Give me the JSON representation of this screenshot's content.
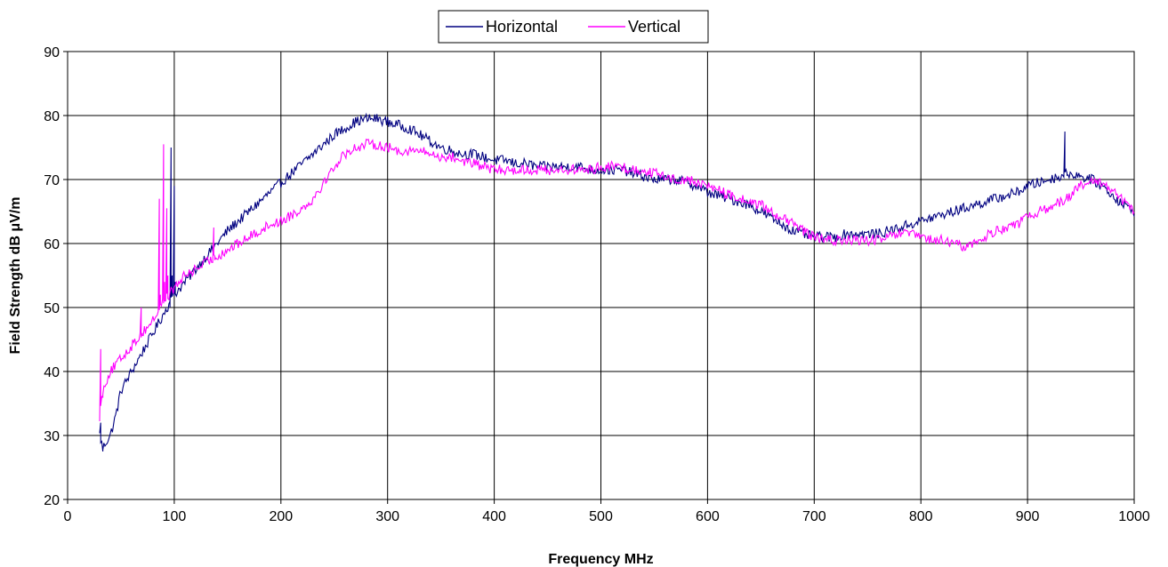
{
  "chart_data": {
    "type": "line",
    "title": "",
    "xlabel": "Frequency MHz",
    "ylabel": "Field Strength dB μV/m",
    "xlim": [
      0,
      1000
    ],
    "ylim": [
      20,
      90
    ],
    "xticks": [
      "0",
      "100",
      "200",
      "300",
      "400",
      "500",
      "600",
      "700",
      "800",
      "900",
      "1000"
    ],
    "yticks": [
      "20",
      "30",
      "40",
      "50",
      "60",
      "70",
      "80",
      "90"
    ],
    "grid": true,
    "legend_position": "top-center",
    "series": [
      {
        "name": "Horizontal",
        "color": "#000080",
        "x": [
          30,
          33,
          36,
          40,
          45,
          50,
          60,
          70,
          80,
          90,
          100,
          110,
          120,
          130,
          140,
          150,
          160,
          170,
          180,
          190,
          200,
          210,
          220,
          230,
          240,
          250,
          260,
          270,
          280,
          290,
          300,
          310,
          320,
          330,
          340,
          350,
          360,
          370,
          380,
          390,
          400,
          410,
          420,
          430,
          440,
          450,
          460,
          470,
          480,
          490,
          500,
          510,
          520,
          530,
          540,
          550,
          560,
          570,
          580,
          590,
          600,
          610,
          620,
          630,
          640,
          650,
          660,
          670,
          680,
          690,
          700,
          710,
          720,
          730,
          740,
          750,
          760,
          770,
          780,
          790,
          800,
          810,
          820,
          830,
          840,
          850,
          860,
          870,
          880,
          890,
          900,
          910,
          920,
          930,
          940,
          950,
          960,
          970,
          980,
          990,
          1000
        ],
        "y": [
          30,
          28,
          29,
          30,
          33,
          37,
          40,
          43,
          46,
          49,
          52,
          54,
          56,
          58,
          60,
          62,
          63.5,
          65,
          66.5,
          68,
          69.5,
          71,
          72.5,
          74,
          75.5,
          77,
          78,
          79,
          79.5,
          79.5,
          79,
          78.5,
          78,
          77,
          76,
          75,
          74.5,
          74,
          74,
          73.5,
          73,
          73,
          72.5,
          72.5,
          72,
          72,
          72,
          72,
          72,
          71.5,
          71.5,
          71.5,
          71.5,
          71,
          70.5,
          70,
          70,
          70,
          69.5,
          69,
          68,
          67.5,
          67,
          66.5,
          66,
          65,
          64,
          63,
          62,
          61.5,
          61,
          61,
          61,
          61.5,
          61.5,
          61.5,
          61.5,
          62,
          62.5,
          63,
          63.5,
          64,
          64.5,
          65,
          65.5,
          66,
          66.5,
          67,
          67.5,
          68,
          69,
          69.5,
          70,
          70.5,
          71,
          70.5,
          70,
          69,
          67.5,
          66,
          65
        ]
      },
      {
        "name": "Vertical",
        "color": "#ff00ff",
        "x": [
          30,
          33,
          36,
          40,
          45,
          50,
          60,
          70,
          80,
          90,
          100,
          110,
          120,
          130,
          140,
          150,
          160,
          170,
          180,
          190,
          200,
          210,
          220,
          230,
          240,
          250,
          260,
          270,
          280,
          290,
          300,
          310,
          320,
          330,
          340,
          350,
          360,
          370,
          380,
          390,
          400,
          410,
          420,
          430,
          440,
          450,
          460,
          470,
          480,
          490,
          500,
          510,
          520,
          530,
          540,
          550,
          560,
          570,
          580,
          590,
          600,
          610,
          620,
          630,
          640,
          650,
          660,
          670,
          680,
          690,
          700,
          710,
          720,
          730,
          740,
          750,
          760,
          770,
          780,
          790,
          800,
          810,
          820,
          830,
          840,
          850,
          860,
          870,
          880,
          890,
          900,
          910,
          920,
          930,
          940,
          950,
          960,
          970,
          980,
          990,
          1000
        ],
        "y": [
          33,
          37,
          38.5,
          40,
          41,
          42,
          44,
          46,
          48,
          51,
          53,
          55,
          56,
          57,
          58,
          59,
          60,
          61,
          62,
          63,
          63.5,
          64.5,
          65.5,
          67,
          69.5,
          72,
          74,
          75,
          75.5,
          75.5,
          75,
          74.5,
          74.5,
          74.5,
          74,
          73.5,
          73.5,
          73,
          72.5,
          72,
          71.5,
          71.5,
          71.5,
          71.5,
          71.5,
          71.5,
          71.5,
          71.5,
          71.5,
          71.5,
          72,
          72,
          72,
          71.5,
          71.5,
          71,
          70.5,
          70,
          70,
          69.5,
          69,
          68.5,
          67.5,
          67,
          66.5,
          66,
          65,
          64,
          63,
          62,
          61,
          60.5,
          60.5,
          60.5,
          60.5,
          60.5,
          60.5,
          61,
          61.5,
          61.5,
          61,
          60.5,
          60.5,
          60,
          59.5,
          60,
          61,
          62,
          62.5,
          63,
          64,
          65,
          65.5,
          66.5,
          67.5,
          69,
          69.5,
          69.5,
          68.5,
          66.5,
          65
        ]
      }
    ],
    "spikes": [
      {
        "series": "Horizontal",
        "x": 31,
        "y": 32
      },
      {
        "series": "Horizontal",
        "x": 33,
        "y": 27.5
      },
      {
        "series": "Horizontal",
        "x": 96,
        "y": 51
      },
      {
        "series": "Horizontal",
        "x": 97,
        "y": 75
      },
      {
        "series": "Horizontal",
        "x": 98,
        "y": 55
      },
      {
        "series": "Horizontal",
        "x": 100,
        "y": 69
      },
      {
        "series": "Horizontal",
        "x": 101,
        "y": 54
      },
      {
        "series": "Horizontal",
        "x": 935,
        "y": 77.5
      },
      {
        "series": "Horizontal",
        "x": 937,
        "y": 71
      },
      {
        "series": "Vertical",
        "x": 31,
        "y": 43.5
      },
      {
        "series": "Vertical",
        "x": 33,
        "y": 36
      },
      {
        "series": "Vertical",
        "x": 69,
        "y": 50
      },
      {
        "series": "Vertical",
        "x": 70,
        "y": 46
      },
      {
        "series": "Vertical",
        "x": 86,
        "y": 67
      },
      {
        "series": "Vertical",
        "x": 87,
        "y": 52
      },
      {
        "series": "Vertical",
        "x": 90,
        "y": 75.5
      },
      {
        "series": "Vertical",
        "x": 91,
        "y": 54
      },
      {
        "series": "Vertical",
        "x": 93,
        "y": 65.5
      },
      {
        "series": "Vertical",
        "x": 94,
        "y": 55
      },
      {
        "series": "Vertical",
        "x": 137,
        "y": 62.5
      },
      {
        "series": "Vertical",
        "x": 138,
        "y": 58
      }
    ]
  }
}
